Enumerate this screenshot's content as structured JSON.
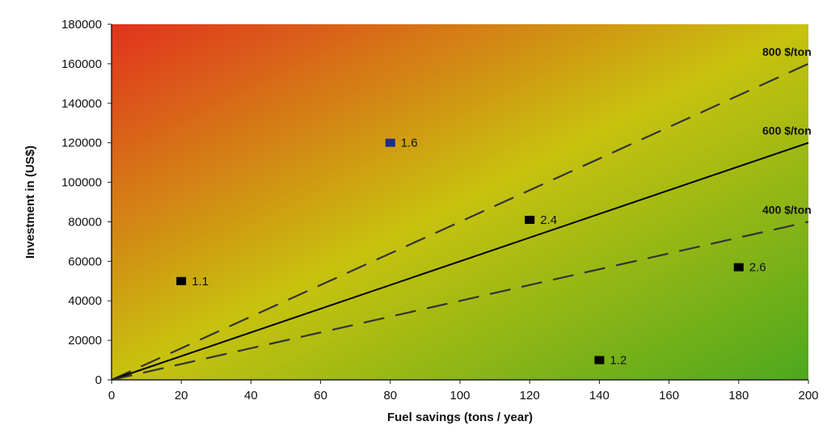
{
  "chart_data": {
    "type": "scatter",
    "xlabel": "Fuel savings (tons / year)",
    "ylabel": "Investment in (US$)",
    "xlim": [
      0,
      200
    ],
    "ylim": [
      0,
      180000
    ],
    "x_ticks": [
      "0",
      "20",
      "40",
      "60",
      "80",
      "100",
      "120",
      "140",
      "160",
      "180",
      "200"
    ],
    "y_ticks": [
      "0",
      "20000",
      "40000",
      "60000",
      "80000",
      "100000",
      "120000",
      "140000",
      "160000",
      "180000"
    ],
    "background_gradient": {
      "top_left": "#e2321e",
      "middle": "#c8c20e",
      "bottom_right": "#4da81e"
    },
    "grid": false,
    "points": [
      {
        "x": 20,
        "y": 50000,
        "label": "1.1",
        "color": "#000000"
      },
      {
        "x": 80,
        "y": 120000,
        "label": "1.6",
        "color": "#1f2e8a"
      },
      {
        "x": 120,
        "y": 81000,
        "label": "2.4",
        "color": "#000000"
      },
      {
        "x": 140,
        "y": 10000,
        "label": "1.2",
        "color": "#000000"
      },
      {
        "x": 180,
        "y": 57000,
        "label": "2.6",
        "color": "#000000"
      }
    ],
    "lines": [
      {
        "label": "800 $/ton",
        "slope": 800,
        "style": "dashed",
        "color": "#333333"
      },
      {
        "label": "600 $/ton",
        "slope": 600,
        "style": "solid",
        "color": "#000000"
      },
      {
        "label": "400 $/ton",
        "slope": 400,
        "style": "dashed",
        "color": "#333333"
      }
    ]
  }
}
